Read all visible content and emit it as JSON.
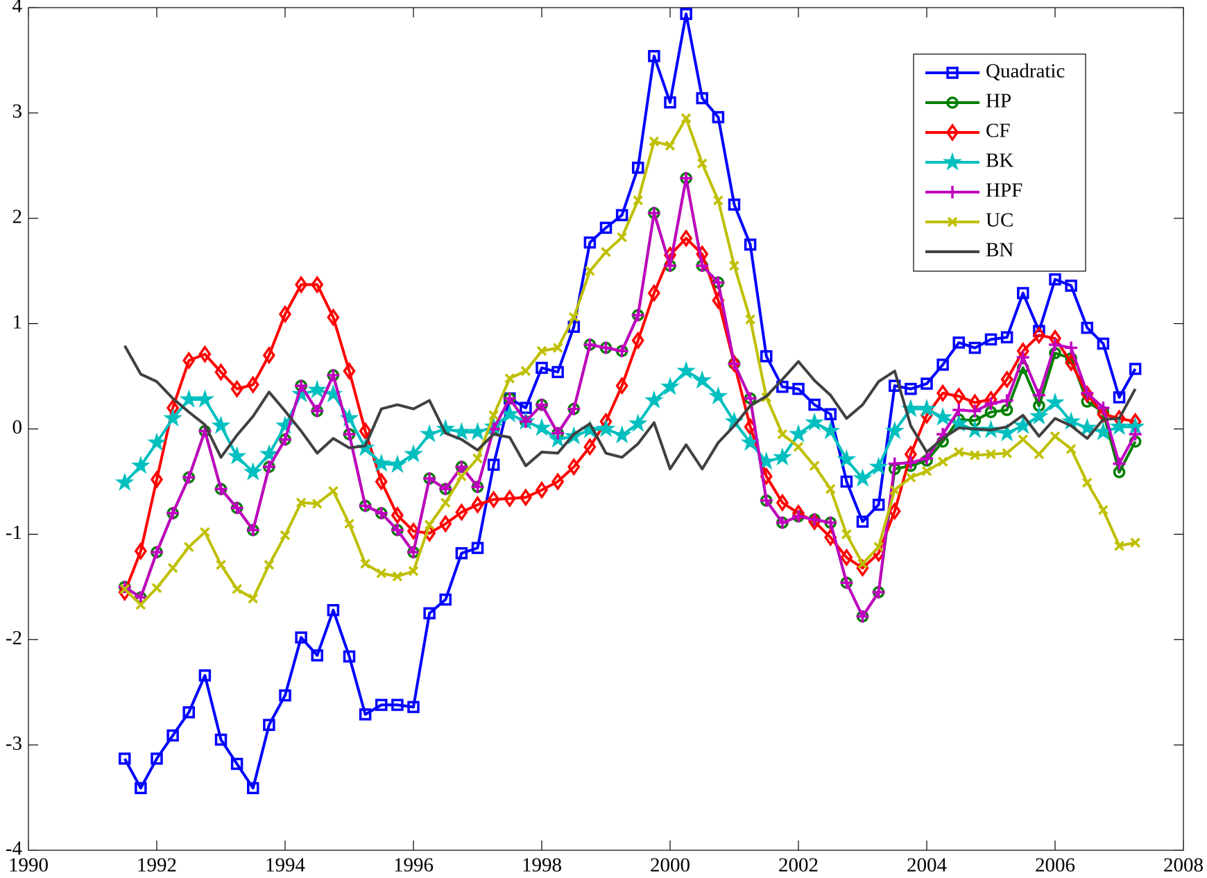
{
  "chart_data": {
    "type": "line",
    "x": [
      1991.5,
      1991.75,
      1992,
      1992.25,
      1992.5,
      1992.75,
      1993,
      1993.25,
      1993.5,
      1993.75,
      1994,
      1994.25,
      1994.5,
      1994.75,
      1995,
      1995.25,
      1995.5,
      1995.75,
      1996,
      1996.25,
      1996.5,
      1996.75,
      1997,
      1997.25,
      1997.5,
      1997.75,
      1998,
      1998.25,
      1998.5,
      1998.75,
      1999,
      1999.25,
      1999.5,
      1999.75,
      2000,
      2000.25,
      2000.5,
      2000.75,
      2001,
      2001.25,
      2001.5,
      2001.75,
      2002,
      2002.25,
      2002.5,
      2002.75,
      2003,
      2003.25,
      2003.5,
      2003.75,
      2004,
      2004.25,
      2004.5,
      2004.75,
      2005,
      2005.25,
      2005.5,
      2005.75,
      2006,
      2006.25,
      2006.5,
      2006.75,
      2007,
      2007.25
    ],
    "series": [
      {
        "name": "Quadratic",
        "color": "#0000ff",
        "marker": "square",
        "values": [
          -3.13,
          -3.41,
          -3.13,
          -2.91,
          -2.69,
          -2.34,
          -2.95,
          -3.18,
          -3.41,
          -2.81,
          -2.53,
          -1.98,
          -2.15,
          -1.72,
          -2.16,
          -2.71,
          -2.62,
          -2.62,
          -2.64,
          -1.75,
          -1.62,
          -1.18,
          -1.13,
          -0.34,
          0.29,
          0.2,
          0.58,
          0.54,
          0.97,
          1.77,
          1.91,
          2.03,
          2.48,
          3.54,
          3.1,
          3.94,
          3.14,
          2.96,
          2.13,
          1.75,
          0.69,
          0.4,
          0.38,
          0.23,
          0.14,
          -0.5,
          -0.88,
          -0.72,
          0.41,
          0.38,
          0.43,
          0.61,
          0.82,
          0.77,
          0.85,
          0.87,
          1.29,
          0.93,
          1.42,
          1.36,
          0.96,
          0.81,
          0.3,
          0.57
        ]
      },
      {
        "name": "HP",
        "color": "#007f00",
        "marker": "circle",
        "values": [
          -1.5,
          -1.6,
          -1.17,
          -0.8,
          -0.46,
          -0.02,
          -0.57,
          -0.75,
          -0.96,
          -0.36,
          -0.1,
          0.41,
          0.17,
          0.51,
          -0.05,
          -0.73,
          -0.8,
          -0.96,
          -1.17,
          -0.47,
          -0.57,
          -0.36,
          -0.55,
          0,
          0.29,
          0.07,
          0.23,
          -0.04,
          0.19,
          0.8,
          0.77,
          0.74,
          1.08,
          2.05,
          1.55,
          2.38,
          1.55,
          1.39,
          0.62,
          0.29,
          -0.68,
          -0.89,
          -0.83,
          -0.86,
          -0.89,
          -1.46,
          -1.78,
          -1.55,
          -0.38,
          -0.35,
          -0.3,
          -0.12,
          0.09,
          0.08,
          0.16,
          0.18,
          0.58,
          0.22,
          0.72,
          0.67,
          0.26,
          0.16,
          -0.41,
          -0.12
        ]
      },
      {
        "name": "CF",
        "color": "#ff0000",
        "marker": "diamond",
        "values": [
          -1.55,
          -1.16,
          -0.48,
          0.2,
          0.65,
          0.71,
          0.54,
          0.38,
          0.42,
          0.7,
          1.09,
          1.37,
          1.37,
          1.06,
          0.55,
          -0.02,
          -0.5,
          -0.82,
          -0.97,
          -0.99,
          -0.9,
          -0.79,
          -0.72,
          -0.67,
          -0.66,
          -0.65,
          -0.58,
          -0.5,
          -0.36,
          -0.17,
          0.07,
          0.41,
          0.84,
          1.29,
          1.65,
          1.81,
          1.66,
          1.22,
          0.62,
          0.02,
          -0.45,
          -0.7,
          -0.8,
          -0.88,
          -1.03,
          -1.22,
          -1.32,
          -1.18,
          -0.78,
          -0.24,
          0.13,
          0.34,
          0.31,
          0.25,
          0.28,
          0.47,
          0.74,
          0.89,
          0.86,
          0.63,
          0.33,
          0.14,
          0.1,
          0.07
        ]
      },
      {
        "name": "BK",
        "color": "#00bfbf",
        "marker": "star",
        "values": [
          -0.51,
          -0.35,
          -0.13,
          0.1,
          0.28,
          0.28,
          0.03,
          -0.26,
          -0.41,
          -0.24,
          0.03,
          0.33,
          0.37,
          0.33,
          0.1,
          -0.18,
          -0.33,
          -0.34,
          -0.24,
          -0.05,
          0,
          -0.03,
          -0.03,
          0.02,
          0.14,
          0.07,
          0.01,
          -0.1,
          -0.07,
          -0.01,
          0,
          -0.06,
          0.05,
          0.27,
          0.4,
          0.55,
          0.46,
          0.31,
          0.07,
          -0.13,
          -0.31,
          -0.27,
          -0.05,
          0.06,
          -0.02,
          -0.29,
          -0.47,
          -0.36,
          -0.02,
          0.19,
          0.19,
          0.11,
          0.05,
          -0.01,
          -0.01,
          -0.04,
          0.03,
          0.12,
          0.25,
          0.07,
          0.01,
          -0.03,
          0.02,
          0.02
        ]
      },
      {
        "name": "HPF",
        "color": "#bf00bf",
        "marker": "plus",
        "values": [
          -1.5,
          -1.6,
          -1.17,
          -0.8,
          -0.46,
          -0.02,
          -0.57,
          -0.75,
          -0.96,
          -0.36,
          -0.1,
          0.41,
          0.17,
          0.51,
          -0.05,
          -0.73,
          -0.8,
          -0.96,
          -1.17,
          -0.47,
          -0.57,
          -0.36,
          -0.55,
          0,
          0.29,
          0.07,
          0.23,
          -0.04,
          0.19,
          0.8,
          0.77,
          0.74,
          1.08,
          2.05,
          1.55,
          2.38,
          1.55,
          1.39,
          0.62,
          0.29,
          -0.68,
          -0.89,
          -0.83,
          -0.86,
          -0.89,
          -1.46,
          -1.78,
          -1.55,
          -0.33,
          -0.32,
          -0.28,
          -0.05,
          0.18,
          0.17,
          0.24,
          0.27,
          0.68,
          0.32,
          0.8,
          0.77,
          0.34,
          0.2,
          -0.33,
          -0.05
        ]
      },
      {
        "name": "UC",
        "color": "#bfbf00",
        "marker": "x",
        "values": [
          -1.52,
          -1.67,
          -1.51,
          -1.32,
          -1.12,
          -0.98,
          -1.29,
          -1.52,
          -1.61,
          -1.29,
          -1.01,
          -0.7,
          -0.71,
          -0.59,
          -0.9,
          -1.28,
          -1.37,
          -1.4,
          -1.35,
          -0.91,
          -0.7,
          -0.45,
          -0.28,
          0.13,
          0.48,
          0.55,
          0.74,
          0.77,
          1.06,
          1.5,
          1.68,
          1.82,
          2.17,
          2.73,
          2.69,
          2.95,
          2.52,
          2.17,
          1.55,
          1.04,
          0.3,
          -0.05,
          -0.17,
          -0.35,
          -0.57,
          -1,
          -1.28,
          -1.12,
          -0.58,
          -0.46,
          -0.4,
          -0.31,
          -0.22,
          -0.25,
          -0.24,
          -0.23,
          -0.1,
          -0.24,
          -0.07,
          -0.19,
          -0.51,
          -0.77,
          -1.11,
          -1.08
        ]
      },
      {
        "name": "BN",
        "color": "#404040",
        "marker": "none",
        "values": [
          0.79,
          0.52,
          0.45,
          0.29,
          0.16,
          0.04,
          -0.27,
          -0.06,
          0.12,
          0.35,
          0.17,
          -0.02,
          -0.23,
          -0.09,
          -0.18,
          -0.16,
          0.19,
          0.23,
          0.19,
          0.27,
          -0.04,
          -0.1,
          -0.2,
          -0.05,
          -0.08,
          -0.35,
          -0.22,
          -0.23,
          -0.05,
          0.05,
          -0.23,
          -0.27,
          -0.14,
          0.06,
          -0.38,
          -0.15,
          -0.38,
          -0.13,
          0.03,
          0.22,
          0.31,
          0.47,
          0.64,
          0.46,
          0.32,
          0.1,
          0.23,
          0.45,
          0.55,
          0.03,
          -0.22,
          -0.09,
          0.01,
          0,
          -0.01,
          0.02,
          0.13,
          -0.07,
          0.1,
          0.03,
          -0.09,
          0.09,
          0.1,
          0.38
        ]
      }
    ],
    "xlim": [
      1990,
      2008
    ],
    "xticks": [
      1990,
      1992,
      1994,
      1996,
      1998,
      2000,
      2002,
      2004,
      2006,
      2008
    ],
    "ylim": [
      -4,
      4
    ],
    "yticks": [
      -4,
      -3,
      -2,
      -1,
      0,
      1,
      2,
      3,
      4
    ],
    "grid": false,
    "legend": "upper right"
  }
}
